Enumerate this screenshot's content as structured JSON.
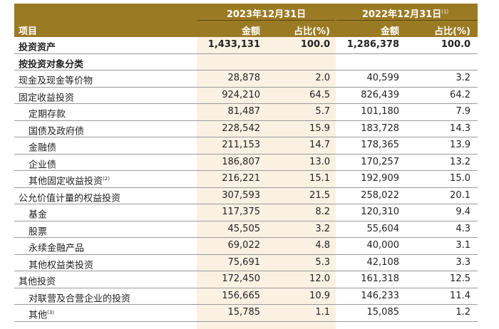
{
  "header": {
    "item_label": "项目",
    "year_2023": "2023年12月31日",
    "year_2022": "2022年12月31日",
    "year_2022_note": "(1)",
    "amount_label": "金额",
    "ratio_label": "占比(%)"
  },
  "colors": {
    "header_bg": "#9b7a24",
    "shade": "#fbf1e3"
  },
  "rows": [
    {
      "label": "投资资产",
      "note": "",
      "a2023": "1,433,131",
      "p2023": "100.0",
      "a2022": "1,286,378",
      "p2022": "100.0",
      "bold": true,
      "indent": false
    },
    {
      "label": "按投资对象分类",
      "note": "",
      "a2023": "",
      "p2023": "",
      "a2022": "",
      "p2022": "",
      "bold": true,
      "indent": false
    },
    {
      "label": "现金及现金等价物",
      "note": "",
      "a2023": "28,878",
      "p2023": "2.0",
      "a2022": "40,599",
      "p2022": "3.2",
      "bold": false,
      "indent": false
    },
    {
      "label": "固定收益投资",
      "note": "",
      "a2023": "924,210",
      "p2023": "64.5",
      "a2022": "826,439",
      "p2022": "64.2",
      "bold": false,
      "indent": false
    },
    {
      "label": "定期存款",
      "note": "",
      "a2023": "81,487",
      "p2023": "5.7",
      "a2022": "101,180",
      "p2022": "7.9",
      "bold": false,
      "indent": true
    },
    {
      "label": "国债及政府债",
      "note": "",
      "a2023": "228,542",
      "p2023": "15.9",
      "a2022": "183,728",
      "p2022": "14.3",
      "bold": false,
      "indent": true
    },
    {
      "label": "金融债",
      "note": "",
      "a2023": "211,153",
      "p2023": "14.7",
      "a2022": "178,365",
      "p2022": "13.9",
      "bold": false,
      "indent": true
    },
    {
      "label": "企业债",
      "note": "",
      "a2023": "186,807",
      "p2023": "13.0",
      "a2022": "170,257",
      "p2022": "13.2",
      "bold": false,
      "indent": true
    },
    {
      "label": "其他固定收益投资",
      "note": "(2)",
      "a2023": "216,221",
      "p2023": "15.1",
      "a2022": "192,909",
      "p2022": "15.0",
      "bold": false,
      "indent": true
    },
    {
      "label": "公允价值计量的权益投资",
      "note": "",
      "a2023": "307,593",
      "p2023": "21.5",
      "a2022": "258,022",
      "p2022": "20.1",
      "bold": false,
      "indent": false
    },
    {
      "label": "基金",
      "note": "",
      "a2023": "117,375",
      "p2023": "8.2",
      "a2022": "120,310",
      "p2022": "9.4",
      "bold": false,
      "indent": true
    },
    {
      "label": "股票",
      "note": "",
      "a2023": "45,505",
      "p2023": "3.2",
      "a2022": "55,604",
      "p2022": "4.3",
      "bold": false,
      "indent": true
    },
    {
      "label": "永续金融产品",
      "note": "",
      "a2023": "69,022",
      "p2023": "4.8",
      "a2022": "40,000",
      "p2022": "3.1",
      "bold": false,
      "indent": true
    },
    {
      "label": "其他权益类投资",
      "note": "",
      "a2023": "75,691",
      "p2023": "5.3",
      "a2022": "42,108",
      "p2022": "3.3",
      "bold": false,
      "indent": true
    },
    {
      "label": "其他投资",
      "note": "",
      "a2023": "172,450",
      "p2023": "12.0",
      "a2022": "161,318",
      "p2022": "12.5",
      "bold": false,
      "indent": false
    },
    {
      "label": "对联营及合营企业的投资",
      "note": "",
      "a2023": "156,665",
      "p2023": "10.9",
      "a2022": "146,233",
      "p2022": "11.4",
      "bold": false,
      "indent": true
    },
    {
      "label": "其他",
      "note": "(3)",
      "a2023": "15,785",
      "p2023": "1.1",
      "a2022": "15,085",
      "p2022": "1.2",
      "bold": false,
      "indent": true
    }
  ]
}
